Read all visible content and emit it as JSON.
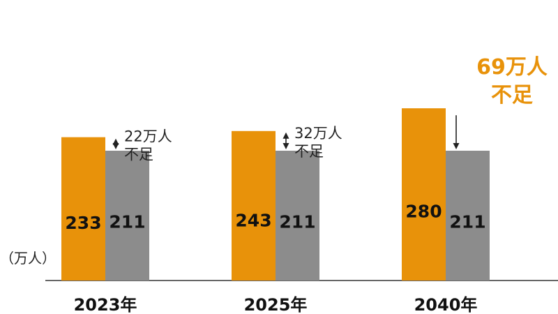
{
  "chart_data": {
    "type": "bar",
    "unit": "（万人）",
    "categories": [
      "2023年",
      "2025年",
      "2040年"
    ],
    "series": [
      {
        "values": [
          233,
          243,
          280
        ],
        "color": "#e8920a"
      },
      {
        "values": [
          211,
          211,
          211
        ],
        "color": "#8c8c8c"
      }
    ],
    "annotations": [
      {
        "line1": "22万人",
        "line2": "不足",
        "highlight": false
      },
      {
        "line1": "32万人",
        "line2": "不足",
        "highlight": false
      },
      {
        "line1": "69万人",
        "line2": "不足",
        "highlight": true
      }
    ],
    "highlight_color": "#e8920a",
    "grid": false,
    "legend": "none"
  }
}
